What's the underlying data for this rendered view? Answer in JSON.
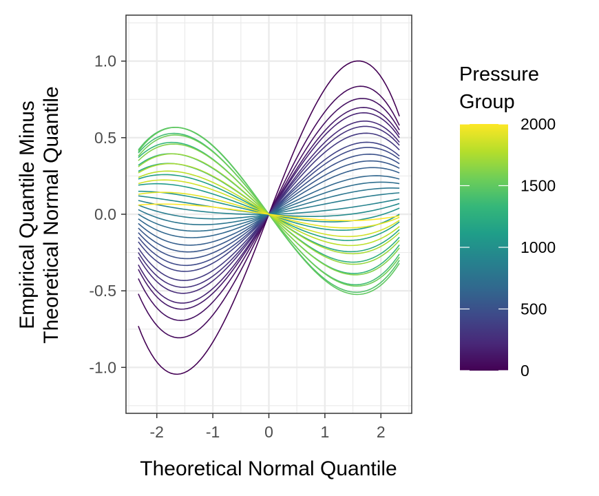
{
  "chart_data": {
    "type": "line",
    "title": "",
    "xlabel": "Theoretical Normal Quantile",
    "ylabel_lines": [
      "Empirical Quantile Minus",
      "Theoretical Normal Quantile"
    ],
    "xlim": [
      -2.55,
      2.55
    ],
    "ylim": [
      -1.3,
      1.3
    ],
    "x_ticks": [
      -2,
      -1,
      0,
      1,
      2
    ],
    "x_tick_labels": [
      "-2",
      "-1",
      "0",
      "1",
      "2"
    ],
    "y_ticks": [
      -1.0,
      -0.5,
      0.0,
      0.5,
      1.0
    ],
    "y_tick_labels": [
      "-1.0",
      "-0.5",
      "0.0",
      "0.5",
      "1.0"
    ],
    "grid": true,
    "x_range_of_lines": [
      -2.33,
      2.33
    ],
    "curve_form": "y = a*x + b*x^3 (cubic in the theoretical normal quantile)",
    "series": [
      {
        "pressure": 0,
        "y_at_min_x": -0.73,
        "y_at_max_x": 0.64
      },
      {
        "pressure": 45,
        "y_at_min_x": -0.52,
        "y_at_max_x": 0.58
      },
      {
        "pressure": 90,
        "y_at_min_x": -0.42,
        "y_at_max_x": 0.55
      },
      {
        "pressure": 140,
        "y_at_min_x": -0.36,
        "y_at_max_x": 0.52
      },
      {
        "pressure": 190,
        "y_at_min_x": -0.33,
        "y_at_max_x": 0.5
      },
      {
        "pressure": 240,
        "y_at_min_x": -0.28,
        "y_at_max_x": 0.47
      },
      {
        "pressure": 290,
        "y_at_min_x": -0.25,
        "y_at_max_x": 0.45
      },
      {
        "pressure": 340,
        "y_at_min_x": -0.22,
        "y_at_max_x": 0.42
      },
      {
        "pressure": 400,
        "y_at_min_x": -0.18,
        "y_at_max_x": 0.38
      },
      {
        "pressure": 450,
        "y_at_min_x": -0.15,
        "y_at_max_x": 0.36
      },
      {
        "pressure": 500,
        "y_at_min_x": -0.12,
        "y_at_max_x": 0.33
      },
      {
        "pressure": 550,
        "y_at_min_x": -0.09,
        "y_at_max_x": 0.3
      },
      {
        "pressure": 600,
        "y_at_min_x": -0.06,
        "y_at_max_x": 0.27
      },
      {
        "pressure": 660,
        "y_at_min_x": -0.03,
        "y_at_max_x": 0.23
      },
      {
        "pressure": 720,
        "y_at_min_x": 0.0,
        "y_at_max_x": 0.2
      },
      {
        "pressure": 780,
        "y_at_min_x": 0.03,
        "y_at_max_x": 0.17
      },
      {
        "pressure": 840,
        "y_at_min_x": 0.06,
        "y_at_max_x": 0.14
      },
      {
        "pressure": 900,
        "y_at_min_x": 0.09,
        "y_at_max_x": 0.1
      },
      {
        "pressure": 960,
        "y_at_min_x": 0.12,
        "y_at_max_x": 0.07
      },
      {
        "pressure": 1020,
        "y_at_min_x": 0.15,
        "y_at_max_x": 0.04
      },
      {
        "pressure": 1080,
        "y_at_min_x": 0.19,
        "y_at_max_x": 0.0
      },
      {
        "pressure": 1140,
        "y_at_min_x": 0.23,
        "y_at_max_x": -0.05
      },
      {
        "pressure": 1200,
        "y_at_min_x": 0.28,
        "y_at_max_x": -0.1
      },
      {
        "pressure": 1260,
        "y_at_min_x": 0.32,
        "y_at_max_x": -0.15
      },
      {
        "pressure": 1320,
        "y_at_min_x": 0.37,
        "y_at_max_x": -0.2
      },
      {
        "pressure": 1380,
        "y_at_min_x": 0.4,
        "y_at_max_x": -0.26
      },
      {
        "pressure": 1440,
        "y_at_min_x": 0.42,
        "y_at_max_x": -0.3
      },
      {
        "pressure": 1500,
        "y_at_min_x": 0.41,
        "y_at_max_x": -0.32
      },
      {
        "pressure": 1560,
        "y_at_min_x": 0.38,
        "y_at_max_x": -0.28
      },
      {
        "pressure": 1620,
        "y_at_min_x": 0.35,
        "y_at_max_x": -0.22
      },
      {
        "pressure": 1680,
        "y_at_min_x": 0.31,
        "y_at_max_x": -0.17
      },
      {
        "pressure": 1740,
        "y_at_min_x": 0.27,
        "y_at_max_x": -0.12
      },
      {
        "pressure": 1800,
        "y_at_min_x": 0.24,
        "y_at_max_x": -0.08
      },
      {
        "pressure": 1860,
        "y_at_min_x": 0.2,
        "y_at_max_x": -0.04
      },
      {
        "pressure": 1920,
        "y_at_min_x": 0.13,
        "y_at_max_x": -0.02
      },
      {
        "pressure": 2000,
        "y_at_min_x": 0.06,
        "y_at_max_x": -0.01
      }
    ],
    "legend": {
      "title_lines": [
        "Pressure",
        "Group"
      ],
      "position": "right",
      "type": "colorbar",
      "range": [
        0,
        2000
      ],
      "ticks": [
        0,
        500,
        1000,
        1500,
        2000
      ],
      "tick_labels": [
        "0",
        "500",
        "1000",
        "1500",
        "2000"
      ],
      "colormap": "viridis",
      "colors": [
        "#440154",
        "#482878",
        "#3e4989",
        "#31688e",
        "#26828e",
        "#1f9e89",
        "#35b779",
        "#6ece58",
        "#b5de2b",
        "#fde725"
      ]
    },
    "colors": {
      "panel_background": "#ffffff",
      "grid": "#ebebeb",
      "panel_border": "#333333"
    }
  }
}
